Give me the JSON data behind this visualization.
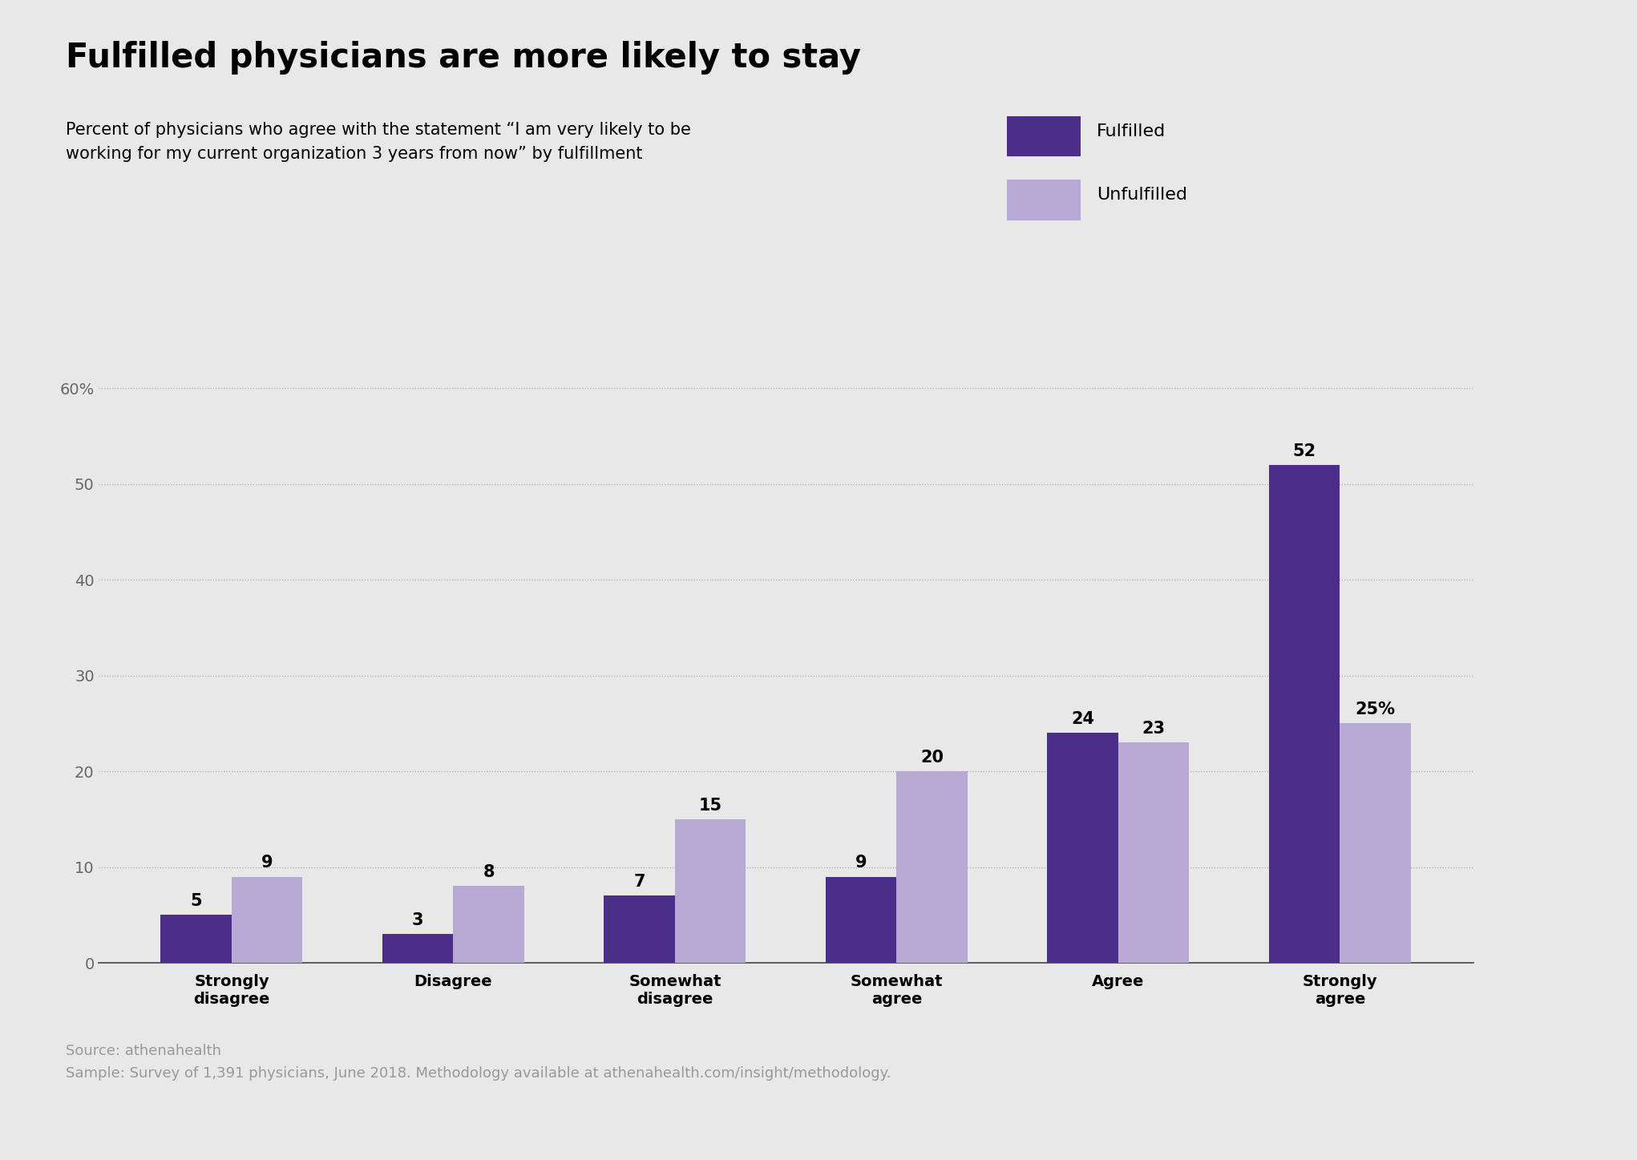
{
  "title": "Fulfilled physicians are more likely to stay",
  "subtitle_line1": "Percent of physicians who agree with the statement “I am very likely to be",
  "subtitle_line2": "working for my current organization 3 years from now” by fulfillment",
  "categories": [
    "Strongly\ndisagree",
    "Disagree",
    "Somewhat\ndisagree",
    "Somewhat\nagree",
    "Agree",
    "Strongly\nagree"
  ],
  "fulfilled_values": [
    5,
    3,
    7,
    9,
    24,
    52
  ],
  "unfulfilled_values": [
    9,
    8,
    15,
    20,
    23,
    25
  ],
  "fulfilled_color": "#4B2E8A",
  "unfulfilled_color": "#B8A9D4",
  "background_color": "#E8E8E8",
  "bar_width": 0.32,
  "ylim": [
    0,
    63
  ],
  "yticks": [
    0,
    10,
    20,
    30,
    40,
    50,
    60
  ],
  "ytick_labels": [
    "0",
    "10",
    "20",
    "30",
    "40",
    "50",
    "60%"
  ],
  "legend_fulfilled": "Fulfilled",
  "legend_unfulfilled": "Unfulfilled",
  "source_line1": "Source: athenahealth",
  "source_line2": "Sample: Survey of 1,391 physicians, June 2018. Methodology available at athenahealth.com/insight/methodology.",
  "title_fontsize": 30,
  "subtitle_fontsize": 15,
  "axis_label_fontsize": 14,
  "bar_label_fontsize": 15,
  "legend_fontsize": 16,
  "source_fontsize": 13,
  "last_bar_unfulfilled_label": "25%"
}
